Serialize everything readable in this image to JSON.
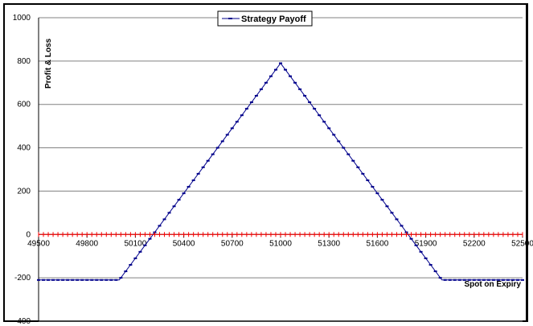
{
  "chart_data": {
    "type": "line",
    "title": "",
    "xlabel": "Spot on Expiry",
    "ylabel": "Profit & Loss",
    "xlim": [
      49500,
      52500
    ],
    "ylim": [
      -400,
      1000
    ],
    "x_ticks": [
      "49500",
      "49800",
      "50100",
      "50400",
      "50700",
      "51000",
      "51300",
      "51600",
      "51900",
      "52200",
      "52500"
    ],
    "y_ticks": [
      "1000",
      "800",
      "600",
      "400",
      "200",
      "0",
      "-200",
      "-400"
    ],
    "grid": true,
    "legend": {
      "placement": "top-center",
      "entries": [
        "Strategy Payoff"
      ]
    },
    "series": [
      {
        "name": "Strategy Payoff",
        "color": "#00008B",
        "marker": "dash",
        "x_start": 49500,
        "x_step": 30,
        "points": [
          [
            49500,
            -210
          ],
          [
            50000,
            -210
          ],
          [
            51000,
            790
          ],
          [
            52000,
            -210
          ],
          [
            52500,
            -210
          ]
        ]
      },
      {
        "color": "#FF0000",
        "marker": "tick",
        "x_start": 49500,
        "x_step": 30,
        "points": [
          [
            49500,
            0
          ],
          [
            52500,
            0
          ]
        ]
      }
    ],
    "colors": {
      "grid": "#808080",
      "axis": "#000000"
    }
  }
}
